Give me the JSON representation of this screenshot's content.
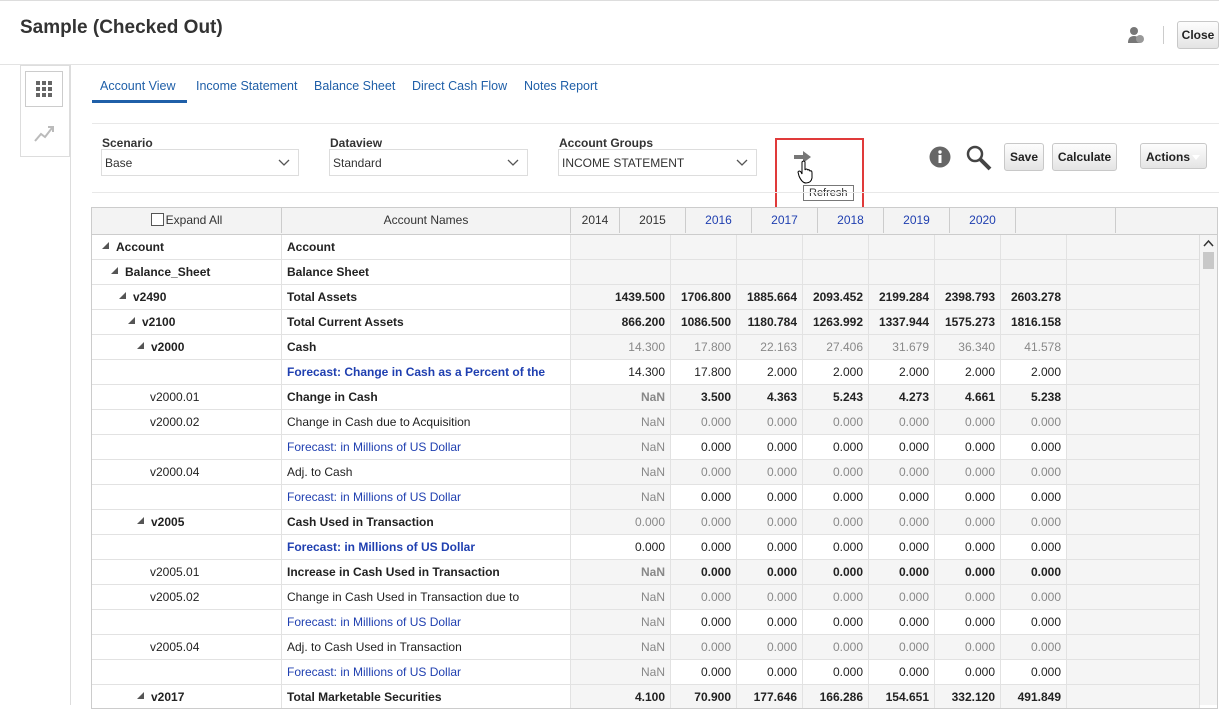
{
  "header": {
    "title": "Sample (Checked Out)",
    "close": "Close"
  },
  "tabs": [
    "Account View",
    "Income Statement",
    "Balance Sheet",
    "Direct Cash Flow",
    "Notes Report"
  ],
  "filters": [
    {
      "label": "Scenario",
      "value": "Base"
    },
    {
      "label": "Dataview",
      "value": "Standard"
    },
    {
      "label": "Account Groups",
      "value": "INCOME STATEMENT"
    }
  ],
  "tooltip": "Refresh",
  "buttons": [
    "Save",
    "Calculate",
    "Actions"
  ],
  "table": {
    "expand_all": "Expand All",
    "names_header": "Account Names",
    "years": [
      "2014",
      "2015",
      "2016",
      "2017",
      "2018",
      "2019",
      "2020"
    ],
    "rows": [
      {
        "code": "Account",
        "name": "Account"
      },
      {
        "code": "Balance_Sheet",
        "name": "Balance Sheet"
      },
      {
        "code": "v2490",
        "name": "Total Assets",
        "values": [
          "1439.500",
          "1706.800",
          "1885.664",
          "2093.452",
          "2199.284",
          "2398.793",
          "2603.278"
        ]
      },
      {
        "code": "v2100",
        "name": "Total Current Assets",
        "values": [
          "866.200",
          "1086.500",
          "1180.784",
          "1263.992",
          "1337.944",
          "1575.273",
          "1816.158"
        ]
      },
      {
        "code": "v2000",
        "name": "Cash",
        "values": [
          "14.300",
          "17.800",
          "22.163",
          "27.406",
          "31.679",
          "36.340",
          "41.578"
        ]
      },
      {
        "name": "Forecast: Change in Cash as a Percent of the",
        "values": [
          "14.300",
          "17.800",
          "2.000",
          "2.000",
          "2.000",
          "2.000",
          "2.000"
        ]
      },
      {
        "code": "v2000.01",
        "name": "Change in Cash",
        "values": [
          "NaN",
          "3.500",
          "4.363",
          "5.243",
          "4.273",
          "4.661",
          "5.238"
        ]
      },
      {
        "code": "v2000.02",
        "name": "Change in Cash due to Acquisition",
        "values": [
          "NaN",
          "0.000",
          "0.000",
          "0.000",
          "0.000",
          "0.000",
          "0.000"
        ]
      },
      {
        "name": "Forecast: in Millions of US Dollar",
        "values": [
          "NaN",
          "0.000",
          "0.000",
          "0.000",
          "0.000",
          "0.000",
          "0.000"
        ]
      },
      {
        "code": "v2000.04",
        "name": "Adj. to Cash",
        "values": [
          "NaN",
          "0.000",
          "0.000",
          "0.000",
          "0.000",
          "0.000",
          "0.000"
        ]
      },
      {
        "name": "Forecast: in Millions of US Dollar",
        "values": [
          "NaN",
          "0.000",
          "0.000",
          "0.000",
          "0.000",
          "0.000",
          "0.000"
        ]
      },
      {
        "code": "v2005",
        "name": "Cash Used in Transaction",
        "values": [
          "0.000",
          "0.000",
          "0.000",
          "0.000",
          "0.000",
          "0.000",
          "0.000"
        ]
      },
      {
        "name": "Forecast: in Millions of US Dollar",
        "values": [
          "0.000",
          "0.000",
          "0.000",
          "0.000",
          "0.000",
          "0.000",
          "0.000"
        ]
      },
      {
        "code": "v2005.01",
        "name": "Increase in Cash Used in Transaction",
        "values": [
          "NaN",
          "0.000",
          "0.000",
          "0.000",
          "0.000",
          "0.000",
          "0.000"
        ]
      },
      {
        "code": "v2005.02",
        "name": "Change in Cash Used in Transaction due to",
        "values": [
          "NaN",
          "0.000",
          "0.000",
          "0.000",
          "0.000",
          "0.000",
          "0.000"
        ]
      },
      {
        "name": "Forecast: in Millions of US Dollar",
        "values": [
          "NaN",
          "0.000",
          "0.000",
          "0.000",
          "0.000",
          "0.000",
          "0.000"
        ]
      },
      {
        "code": "v2005.04",
        "name": "Adj. to Cash Used in Transaction",
        "values": [
          "NaN",
          "0.000",
          "0.000",
          "0.000",
          "0.000",
          "0.000",
          "0.000"
        ]
      },
      {
        "name": "Forecast: in Millions of US Dollar",
        "values": [
          "NaN",
          "0.000",
          "0.000",
          "0.000",
          "0.000",
          "0.000",
          "0.000"
        ]
      },
      {
        "code": "v2017",
        "name": "Total Marketable Securities",
        "values": [
          "4.100",
          "70.900",
          "177.646",
          "166.286",
          "154.651",
          "332.120",
          "491.849"
        ]
      }
    ]
  }
}
